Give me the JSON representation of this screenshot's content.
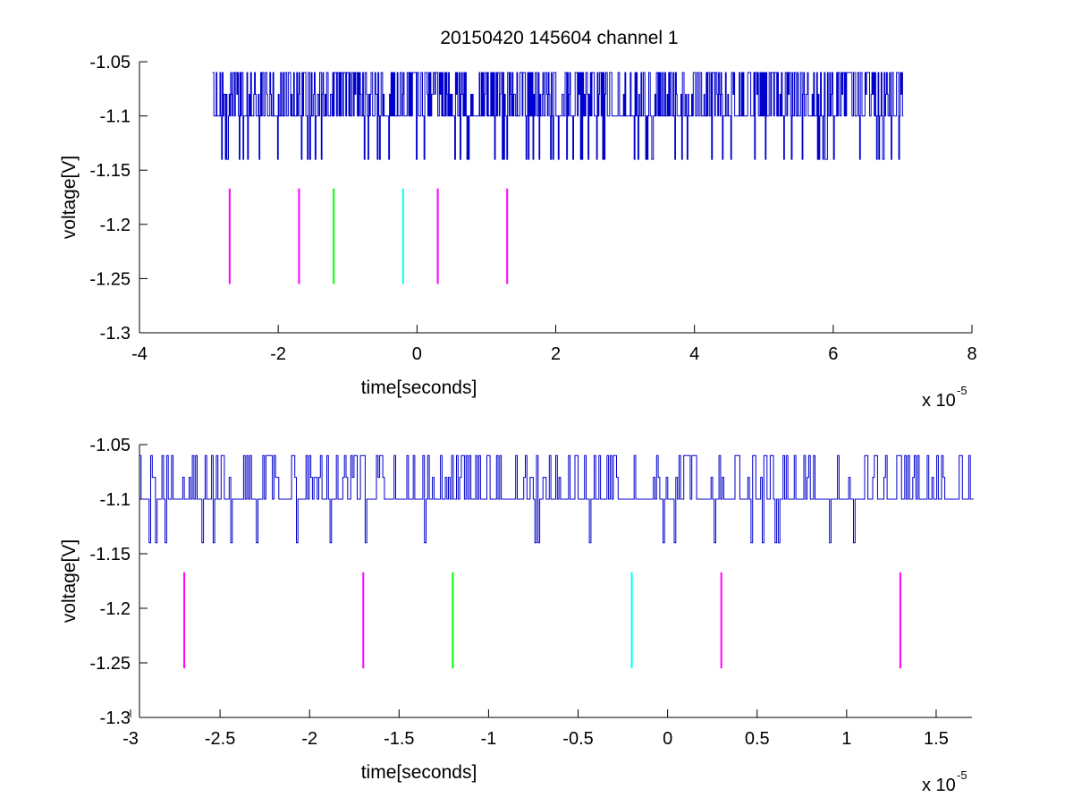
{
  "chart_data": [
    {
      "type": "line",
      "title": "20150420 145604 channel 1",
      "xlabel": "time[seconds]",
      "ylabel": "voltage[V]",
      "x_multiplier_base": "x 10",
      "x_multiplier_exponent": "-5",
      "xlim": [
        -4,
        8
      ],
      "ylim": [
        -1.3,
        -1.05
      ],
      "x_ticks": [
        -4,
        -2,
        0,
        2,
        4,
        6,
        8
      ],
      "x_tick_labels": [
        "-4",
        "-2",
        "0",
        "2",
        "4",
        "6",
        "8"
      ],
      "y_ticks": [
        -1.3,
        -1.25,
        -1.2,
        -1.15,
        -1.1,
        -1.05
      ],
      "y_tick_labels": [
        "-1.3",
        "-1.25",
        "-1.2",
        "-1.15",
        "-1.1",
        "-1.05"
      ],
      "grid": false,
      "signal": {
        "color": "#0000cc",
        "x_start": -2.95,
        "x_end": 7.0,
        "levels": [
          -1.06,
          -1.08,
          -1.1,
          -1.14
        ],
        "baseline": -1.1
      },
      "markers": [
        {
          "x": -2.7,
          "y_top": -1.167,
          "y_bottom": -1.255,
          "color": "#ff00ff"
        },
        {
          "x": -1.7,
          "y_top": -1.167,
          "y_bottom": -1.255,
          "color": "#ff00ff"
        },
        {
          "x": -1.2,
          "y_top": -1.167,
          "y_bottom": -1.255,
          "color": "#00ff00"
        },
        {
          "x": -0.2,
          "y_top": -1.167,
          "y_bottom": -1.255,
          "color": "#00ffff"
        },
        {
          "x": 0.3,
          "y_top": -1.167,
          "y_bottom": -1.255,
          "color": "#ff00ff"
        },
        {
          "x": 1.3,
          "y_top": -1.167,
          "y_bottom": -1.255,
          "color": "#ff00ff"
        }
      ]
    },
    {
      "type": "line",
      "title": "",
      "xlabel": "time[seconds]",
      "ylabel": "voltage[V]",
      "x_multiplier_base": "x 10",
      "x_multiplier_exponent": "-5",
      "xlim": [
        -2.95,
        1.7
      ],
      "ylim": [
        -1.3,
        -1.05
      ],
      "x_ticks": [
        -3,
        -2.5,
        -2,
        -1.5,
        -1,
        -0.5,
        0,
        0.5,
        1,
        1.5
      ],
      "x_tick_labels": [
        "-3",
        "-2.5",
        "-2",
        "-1.5",
        "-1",
        "-0.5",
        "0",
        "0.5",
        "1",
        "1.5"
      ],
      "y_ticks": [
        -1.3,
        -1.25,
        -1.2,
        -1.15,
        -1.1,
        -1.05
      ],
      "y_tick_labels": [
        "-1.3",
        "-1.25",
        "-1.2",
        "-1.15",
        "-1.1",
        "-1.05"
      ],
      "grid": false,
      "signal": {
        "color": "#0000cc",
        "x_start": -2.95,
        "x_end": 1.7,
        "levels": [
          -1.06,
          -1.08,
          -1.1,
          -1.14
        ],
        "baseline": -1.1
      },
      "markers": [
        {
          "x": -2.7,
          "y_top": -1.167,
          "y_bottom": -1.255,
          "color": "#ff00ff"
        },
        {
          "x": -1.7,
          "y_top": -1.167,
          "y_bottom": -1.255,
          "color": "#ff00ff"
        },
        {
          "x": -1.2,
          "y_top": -1.167,
          "y_bottom": -1.255,
          "color": "#00ff00"
        },
        {
          "x": -0.2,
          "y_top": -1.167,
          "y_bottom": -1.255,
          "color": "#00ffff"
        },
        {
          "x": 0.3,
          "y_top": -1.167,
          "y_bottom": -1.255,
          "color": "#ff00ff"
        },
        {
          "x": 1.3,
          "y_top": -1.167,
          "y_bottom": -1.255,
          "color": "#ff00ff"
        }
      ]
    }
  ]
}
